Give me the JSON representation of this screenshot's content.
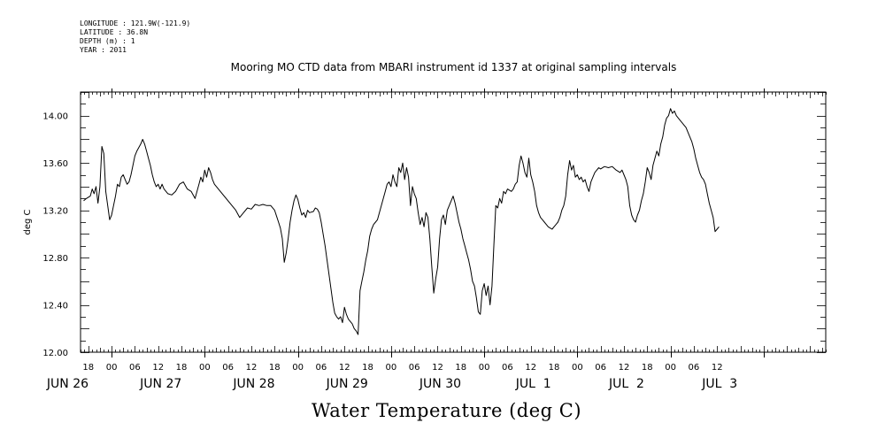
{
  "header": {
    "longitude": "LONGITUDE : 121.9W(-121.9)",
    "latitude": "LATITUDE : 36.8N",
    "depth": "DEPTH (m) : 1",
    "year": "YEAR : 2011"
  },
  "chart_data": {
    "type": "line",
    "title": "Mooring MO CTD data from MBARI instrument id 1337 at original sampling intervals",
    "xlabel": "Water Temperature (deg C)",
    "ylabel": "deg C",
    "ylim": [
      12.0,
      14.2
    ],
    "yticks": [
      "12.00",
      "12.40",
      "12.80",
      "13.20",
      "13.60",
      "14.00"
    ],
    "x_unit": "hours since 2011-06-25 00:00",
    "xlim": [
      40,
      232
    ],
    "hour_tick_labels": [
      "18",
      "00",
      "06",
      "12",
      "18",
      "00",
      "06",
      "12",
      "18",
      "00",
      "06",
      "12",
      "18",
      "00",
      "06",
      "12",
      "18",
      "00",
      "06",
      "12",
      "18",
      "00",
      "06",
      "12",
      "18",
      "00",
      "06",
      "12"
    ],
    "day_labels": [
      "JUN 26",
      "JUN 27",
      "JUN 28",
      "JUN 29",
      "JUN 30",
      "JUL  1",
      "JUL  2",
      "JUL  3"
    ],
    "grid": false,
    "series": [
      {
        "values": [
          [
            40.8,
            13.28
          ],
          [
            41.5,
            13.3
          ],
          [
            42.5,
            13.32
          ],
          [
            43.0,
            13.38
          ],
          [
            43.5,
            13.34
          ],
          [
            44.0,
            13.4
          ],
          [
            44.5,
            13.26
          ],
          [
            45.0,
            13.4
          ],
          [
            45.5,
            13.74
          ],
          [
            46.0,
            13.68
          ],
          [
            46.5,
            13.36
          ],
          [
            47.0,
            13.24
          ],
          [
            47.5,
            13.12
          ],
          [
            48.0,
            13.16
          ],
          [
            48.5,
            13.24
          ],
          [
            49.0,
            13.32
          ],
          [
            49.5,
            13.42
          ],
          [
            50.0,
            13.4
          ],
          [
            50.5,
            13.48
          ],
          [
            51.0,
            13.5
          ],
          [
            51.5,
            13.46
          ],
          [
            52.0,
            13.42
          ],
          [
            52.5,
            13.44
          ],
          [
            53.0,
            13.5
          ],
          [
            53.5,
            13.58
          ],
          [
            54.0,
            13.66
          ],
          [
            54.5,
            13.7
          ],
          [
            55.5,
            13.76
          ],
          [
            56.0,
            13.8
          ],
          [
            56.5,
            13.76
          ],
          [
            57.0,
            13.7
          ],
          [
            57.5,
            13.64
          ],
          [
            58.0,
            13.58
          ],
          [
            58.5,
            13.5
          ],
          [
            59.0,
            13.44
          ],
          [
            59.5,
            13.4
          ],
          [
            60.0,
            13.42
          ],
          [
            60.5,
            13.38
          ],
          [
            61.0,
            13.42
          ],
          [
            61.5,
            13.38
          ],
          [
            62.5,
            13.34
          ],
          [
            63.5,
            13.33
          ],
          [
            64.5,
            13.36
          ],
          [
            65.5,
            13.42
          ],
          [
            66.5,
            13.44
          ],
          [
            67.5,
            13.38
          ],
          [
            68.5,
            13.36
          ],
          [
            69.5,
            13.3
          ],
          [
            70.0,
            13.36
          ],
          [
            70.5,
            13.42
          ],
          [
            71.0,
            13.48
          ],
          [
            71.5,
            13.44
          ],
          [
            72.0,
            13.54
          ],
          [
            72.5,
            13.48
          ],
          [
            73.0,
            13.56
          ],
          [
            73.5,
            13.52
          ],
          [
            74.0,
            13.46
          ],
          [
            74.5,
            13.42
          ],
          [
            80.0,
            13.2
          ],
          [
            81.0,
            13.14
          ],
          [
            82.0,
            13.18
          ],
          [
            83.0,
            13.22
          ],
          [
            84.0,
            13.21
          ],
          [
            85.0,
            13.25
          ],
          [
            86.0,
            13.24
          ],
          [
            87.0,
            13.25
          ],
          [
            88.0,
            13.24
          ],
          [
            89.0,
            13.24
          ],
          [
            90.0,
            13.2
          ],
          [
            90.5,
            13.15
          ],
          [
            91.0,
            13.1
          ],
          [
            91.5,
            13.05
          ],
          [
            92.0,
            12.96
          ],
          [
            92.5,
            12.76
          ],
          [
            93.0,
            12.84
          ],
          [
            93.5,
            12.96
          ],
          [
            94.0,
            13.1
          ],
          [
            94.5,
            13.2
          ],
          [
            95.0,
            13.28
          ],
          [
            95.5,
            13.33
          ],
          [
            96.0,
            13.29
          ],
          [
            96.5,
            13.22
          ],
          [
            97.0,
            13.16
          ],
          [
            97.5,
            13.18
          ],
          [
            98.0,
            13.14
          ],
          [
            98.5,
            13.2
          ],
          [
            99.0,
            13.18
          ],
          [
            100.0,
            13.19
          ],
          [
            100.5,
            13.22
          ],
          [
            101.0,
            13.21
          ],
          [
            101.5,
            13.18
          ],
          [
            102.0,
            13.1
          ],
          [
            102.5,
            13.0
          ],
          [
            103.0,
            12.9
          ],
          [
            103.5,
            12.78
          ],
          [
            104.0,
            12.66
          ],
          [
            104.5,
            12.54
          ],
          [
            105.0,
            12.42
          ],
          [
            105.5,
            12.33
          ],
          [
            106.0,
            12.3
          ],
          [
            106.5,
            12.28
          ],
          [
            107.0,
            12.3
          ],
          [
            107.5,
            12.25
          ],
          [
            108.0,
            12.38
          ],
          [
            108.5,
            12.32
          ],
          [
            109.0,
            12.28
          ],
          [
            109.5,
            12.26
          ],
          [
            110.0,
            12.24
          ],
          [
            110.5,
            12.2
          ],
          [
            111.0,
            12.18
          ],
          [
            111.5,
            12.15
          ],
          [
            112.0,
            12.52
          ],
          [
            112.5,
            12.6
          ],
          [
            113.0,
            12.68
          ],
          [
            113.5,
            12.78
          ],
          [
            114.0,
            12.86
          ],
          [
            114.5,
            12.98
          ],
          [
            115.0,
            13.04
          ],
          [
            115.5,
            13.08
          ],
          [
            116.0,
            13.1
          ],
          [
            116.5,
            13.12
          ],
          [
            117.0,
            13.18
          ],
          [
            117.5,
            13.24
          ],
          [
            118.0,
            13.3
          ],
          [
            118.5,
            13.36
          ],
          [
            119.0,
            13.42
          ],
          [
            119.5,
            13.44
          ],
          [
            120.0,
            13.4
          ],
          [
            120.5,
            13.5
          ],
          [
            121.0,
            13.44
          ],
          [
            121.5,
            13.4
          ],
          [
            122.0,
            13.56
          ],
          [
            122.5,
            13.52
          ],
          [
            123.0,
            13.6
          ],
          [
            123.5,
            13.46
          ],
          [
            124.0,
            13.56
          ],
          [
            124.5,
            13.48
          ],
          [
            125.0,
            13.24
          ],
          [
            125.5,
            13.4
          ],
          [
            126.0,
            13.34
          ],
          [
            126.5,
            13.3
          ],
          [
            127.0,
            13.18
          ],
          [
            127.5,
            13.08
          ],
          [
            128.0,
            13.14
          ],
          [
            128.5,
            13.06
          ],
          [
            129.0,
            13.18
          ],
          [
            129.5,
            13.14
          ],
          [
            130.0,
            12.96
          ],
          [
            130.5,
            12.72
          ],
          [
            131.0,
            12.5
          ],
          [
            131.5,
            12.62
          ],
          [
            132.0,
            12.72
          ],
          [
            132.5,
            12.96
          ],
          [
            133.0,
            13.12
          ],
          [
            133.5,
            13.16
          ],
          [
            134.0,
            13.08
          ],
          [
            134.5,
            13.2
          ],
          [
            135.0,
            13.24
          ],
          [
            135.5,
            13.28
          ],
          [
            136.0,
            13.32
          ],
          [
            136.5,
            13.26
          ],
          [
            137.0,
            13.18
          ],
          [
            137.5,
            13.1
          ],
          [
            138.0,
            13.04
          ],
          [
            138.5,
            12.96
          ],
          [
            139.0,
            12.9
          ],
          [
            139.5,
            12.84
          ],
          [
            140.0,
            12.78
          ],
          [
            140.5,
            12.7
          ],
          [
            141.0,
            12.6
          ],
          [
            141.5,
            12.56
          ],
          [
            142.0,
            12.46
          ],
          [
            142.5,
            12.34
          ],
          [
            143.0,
            12.32
          ],
          [
            143.5,
            12.52
          ],
          [
            144.0,
            12.58
          ],
          [
            144.5,
            12.48
          ],
          [
            145.0,
            12.56
          ],
          [
            145.5,
            12.4
          ],
          [
            146.0,
            12.56
          ],
          [
            146.5,
            12.9
          ],
          [
            147.0,
            13.24
          ],
          [
            147.5,
            13.22
          ],
          [
            148.0,
            13.3
          ],
          [
            148.5,
            13.26
          ],
          [
            149.0,
            13.36
          ],
          [
            149.5,
            13.34
          ],
          [
            150.0,
            13.38
          ],
          [
            151.0,
            13.36
          ],
          [
            151.5,
            13.38
          ],
          [
            152.0,
            13.42
          ],
          [
            152.5,
            13.44
          ],
          [
            153.0,
            13.58
          ],
          [
            153.5,
            13.66
          ],
          [
            154.0,
            13.6
          ],
          [
            154.5,
            13.52
          ],
          [
            155.0,
            13.48
          ],
          [
            155.5,
            13.64
          ],
          [
            156.0,
            13.5
          ],
          [
            156.5,
            13.44
          ],
          [
            157.0,
            13.36
          ],
          [
            157.5,
            13.24
          ],
          [
            158.0,
            13.18
          ],
          [
            158.5,
            13.14
          ],
          [
            159.0,
            13.12
          ],
          [
            159.5,
            13.1
          ],
          [
            160.0,
            13.08
          ],
          [
            160.5,
            13.06
          ],
          [
            161.0,
            13.05
          ],
          [
            161.5,
            13.04
          ],
          [
            162.0,
            13.06
          ],
          [
            162.5,
            13.08
          ],
          [
            163.0,
            13.1
          ],
          [
            163.5,
            13.14
          ],
          [
            164.0,
            13.2
          ],
          [
            164.5,
            13.24
          ],
          [
            165.0,
            13.32
          ],
          [
            165.5,
            13.5
          ],
          [
            166.0,
            13.62
          ],
          [
            166.5,
            13.54
          ],
          [
            167.0,
            13.58
          ],
          [
            167.5,
            13.48
          ],
          [
            168.0,
            13.5
          ],
          [
            168.5,
            13.46
          ],
          [
            169.0,
            13.48
          ],
          [
            169.5,
            13.44
          ],
          [
            170.0,
            13.46
          ],
          [
            170.5,
            13.4
          ],
          [
            171.0,
            13.36
          ],
          [
            171.5,
            13.44
          ],
          [
            172.0,
            13.48
          ],
          [
            172.5,
            13.52
          ],
          [
            173.0,
            13.54
          ],
          [
            173.5,
            13.56
          ],
          [
            174.0,
            13.55
          ],
          [
            175.0,
            13.57
          ],
          [
            176.0,
            13.56
          ],
          [
            177.0,
            13.57
          ],
          [
            178.0,
            13.54
          ],
          [
            179.0,
            13.52
          ],
          [
            179.5,
            13.54
          ],
          [
            180.0,
            13.5
          ],
          [
            180.5,
            13.46
          ],
          [
            181.0,
            13.4
          ],
          [
            181.5,
            13.24
          ],
          [
            182.0,
            13.16
          ],
          [
            182.5,
            13.12
          ],
          [
            183.0,
            13.1
          ],
          [
            183.5,
            13.16
          ],
          [
            184.0,
            13.2
          ],
          [
            184.5,
            13.28
          ],
          [
            185.0,
            13.34
          ],
          [
            185.5,
            13.44
          ],
          [
            186.0,
            13.56
          ],
          [
            186.5,
            13.52
          ],
          [
            187.0,
            13.46
          ],
          [
            187.5,
            13.58
          ],
          [
            188.0,
            13.64
          ],
          [
            188.5,
            13.7
          ],
          [
            189.0,
            13.66
          ],
          [
            189.5,
            13.76
          ],
          [
            190.0,
            13.82
          ],
          [
            190.5,
            13.92
          ],
          [
            191.0,
            13.98
          ],
          [
            191.5,
            14.0
          ],
          [
            192.0,
            14.06
          ],
          [
            192.5,
            14.02
          ],
          [
            193.0,
            14.04
          ],
          [
            193.5,
            14.0
          ],
          [
            194.0,
            13.98
          ],
          [
            194.5,
            13.96
          ],
          [
            195.0,
            13.94
          ],
          [
            195.5,
            13.92
          ],
          [
            196.0,
            13.9
          ],
          [
            196.5,
            13.86
          ],
          [
            197.0,
            13.82
          ],
          [
            197.5,
            13.78
          ],
          [
            198.0,
            13.72
          ],
          [
            198.5,
            13.64
          ],
          [
            199.0,
            13.58
          ],
          [
            199.5,
            13.52
          ],
          [
            200.0,
            13.48
          ],
          [
            200.5,
            13.46
          ],
          [
            201.0,
            13.42
          ],
          [
            201.5,
            13.34
          ],
          [
            202.0,
            13.26
          ],
          [
            202.5,
            13.2
          ],
          [
            203.0,
            13.14
          ],
          [
            203.5,
            13.02
          ],
          [
            204.0,
            13.04
          ],
          [
            204.5,
            13.06
          ]
        ]
      }
    ]
  }
}
